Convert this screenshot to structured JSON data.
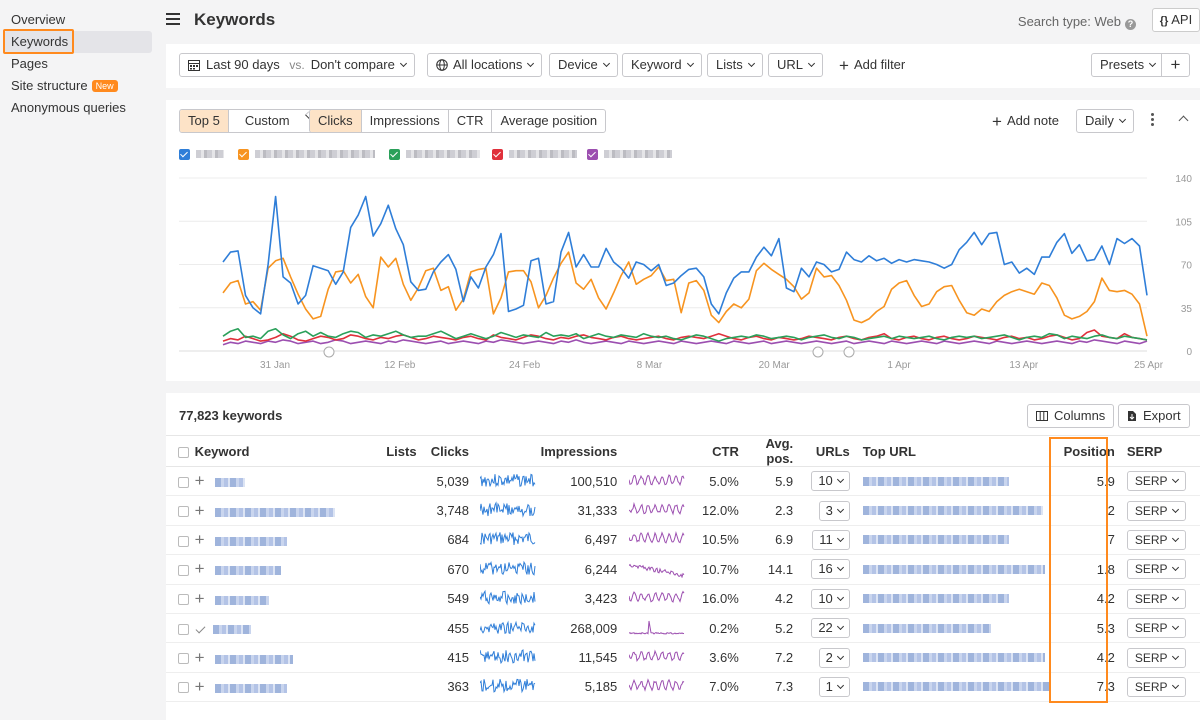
{
  "sidebar": {
    "items": [
      {
        "label": "Overview",
        "badge": ""
      },
      {
        "label": "Keywords",
        "badge": ""
      },
      {
        "label": "Pages",
        "badge": ""
      },
      {
        "label": "Site structure",
        "badge": "New"
      },
      {
        "label": "Anonymous queries",
        "badge": ""
      }
    ],
    "active_index": 1
  },
  "header": {
    "title": "Keywords",
    "search_type": "Search type: Web",
    "api_label": "API"
  },
  "filters": {
    "date": "Last 90 days",
    "vs": "vs.",
    "compare": "Don't compare",
    "locations": "All locations",
    "device": "Device",
    "keyword": "Keyword",
    "lists": "Lists",
    "url": "URL",
    "add_filter": "Add filter",
    "presets": "Presets"
  },
  "chart_controls": {
    "top": "Top 5",
    "custom": "Custom",
    "metrics": [
      "Clicks",
      "Impressions",
      "CTR",
      "Average position"
    ],
    "active_metric": "Clicks",
    "add_note": "Add note",
    "interval": "Daily"
  },
  "colors": {
    "accent": "#ff8a1e",
    "blue": "#2f7ed8",
    "orange": "#f79420",
    "green": "#2aa05a",
    "red": "#e0303b",
    "purple": "#9c4fb0",
    "highlight": "#fde3c7"
  },
  "chart_data": {
    "type": "line",
    "x_ticks": [
      "31 Jan",
      "12 Feb",
      "24 Feb",
      "8 Mar",
      "20 Mar",
      "1 Apr",
      "13 Apr",
      "25 Apr"
    ],
    "y_ticks": [
      0,
      35,
      70,
      105,
      140
    ],
    "ylim": [
      0,
      140
    ],
    "series": [
      {
        "color": "#2f7ed8",
        "values": [
          72,
          80,
          81,
          45,
          35,
          30,
          70,
          125,
          60,
          55,
          38,
          45,
          69,
          67,
          65,
          54,
          64,
          100,
          110,
          125,
          93,
          103,
          118,
          99,
          86,
          56,
          49,
          50,
          64,
          72,
          78,
          66,
          40,
          60,
          51,
          68,
          78,
          95,
          32,
          34,
          37,
          73,
          75,
          38,
          40,
          80,
          96,
          68,
          78,
          68,
          68,
          83,
          72,
          67,
          59,
          72,
          70,
          65,
          70,
          53,
          55,
          61,
          66,
          67,
          60,
          38,
          30,
          47,
          59,
          64,
          64,
          76,
          84,
          77,
          91,
          51,
          48,
          67,
          60,
          72,
          70,
          64,
          66,
          80,
          74,
          72,
          77,
          73,
          75,
          71,
          74,
          72,
          74,
          73,
          72,
          70,
          67,
          70,
          82,
          88,
          96,
          86,
          95,
          96,
          70,
          72,
          63,
          67,
          62,
          76,
          76,
          88,
          95,
          79,
          86,
          73,
          74,
          85,
          70,
          91,
          87,
          91,
          85,
          45
        ]
      },
      {
        "color": "#f79420",
        "values": [
          47,
          55,
          57,
          38,
          40,
          33,
          67,
          73,
          75,
          60,
          46,
          34,
          26,
          28,
          50,
          64,
          65,
          55,
          62,
          44,
          35,
          76,
          68,
          75,
          54,
          41,
          51,
          65,
          67,
          49,
          52,
          33,
          42,
          64,
          66,
          67,
          30,
          43,
          64,
          65,
          65,
          56,
          35,
          45,
          59,
          71,
          80,
          55,
          50,
          58,
          43,
          34,
          47,
          61,
          72,
          54,
          58,
          61,
          68,
          57,
          58,
          31,
          55,
          57,
          49,
          29,
          23,
          32,
          38,
          35,
          42,
          65,
          71,
          66,
          62,
          58,
          52,
          42,
          47,
          67,
          60,
          61,
          53,
          41,
          25,
          23,
          26,
          32,
          36,
          50,
          55,
          57,
          45,
          36,
          38,
          48,
          52,
          53,
          41,
          31,
          29,
          34,
          32,
          40,
          45,
          48,
          50,
          48,
          46,
          55,
          53,
          43,
          29,
          26,
          28,
          32,
          40,
          59,
          49,
          48,
          49,
          46,
          38,
          12
        ]
      },
      {
        "color": "#2aa05a",
        "values": [
          12,
          16,
          18,
          11,
          12,
          10,
          16,
          18,
          13,
          10,
          14,
          16,
          12,
          15,
          12,
          11,
          14,
          16,
          15,
          11,
          13,
          12,
          14,
          16,
          13,
          11,
          12,
          12,
          14,
          16,
          13,
          10,
          12,
          14,
          12,
          10,
          12,
          15,
          13,
          11,
          13,
          12,
          11,
          15,
          12,
          13,
          12,
          14,
          10,
          12,
          14,
          12,
          11,
          13,
          12,
          11,
          14,
          12,
          11,
          12,
          10,
          9,
          11,
          13,
          12,
          10,
          8,
          10,
          11,
          12,
          11,
          13,
          12,
          10,
          11,
          12,
          11,
          9,
          11,
          12,
          13,
          11,
          10,
          12,
          11,
          9,
          10,
          11,
          12,
          10,
          12,
          11,
          10,
          11,
          12,
          10,
          9,
          11,
          12,
          11,
          12,
          10,
          11,
          12,
          13,
          11,
          9,
          11,
          12,
          11,
          14,
          13,
          10,
          12,
          11,
          10,
          12,
          13,
          11,
          10,
          12,
          11,
          10,
          9
        ]
      },
      {
        "color": "#e0303b",
        "values": [
          8,
          10,
          9,
          12,
          10,
          8,
          9,
          11,
          14,
          12,
          9,
          8,
          10,
          12,
          11,
          9,
          10,
          13,
          12,
          10,
          9,
          11,
          10,
          12,
          13,
          11,
          9,
          10,
          12,
          11,
          10,
          9,
          11,
          12,
          10,
          9,
          13,
          11,
          10,
          9,
          11,
          13,
          12,
          10,
          9,
          11,
          10,
          12,
          13,
          11,
          10,
          9,
          11,
          12,
          10,
          9,
          10,
          11,
          12,
          10,
          9,
          11,
          12,
          11,
          10,
          12,
          14,
          12,
          10,
          9,
          11,
          12,
          10,
          9,
          11,
          10,
          9,
          10,
          12,
          11,
          10,
          9,
          11,
          12,
          10,
          9,
          11,
          12,
          14,
          10,
          9,
          11,
          12,
          10,
          9,
          11,
          12,
          10,
          9,
          10,
          12,
          11,
          10,
          9,
          11,
          12,
          10,
          11,
          9,
          10,
          12,
          13,
          11,
          9,
          10,
          15,
          17,
          12,
          11,
          10,
          14,
          11,
          10,
          9
        ]
      },
      {
        "color": "#9c4fb0",
        "values": [
          5,
          7,
          6,
          8,
          7,
          6,
          8,
          7,
          9,
          8,
          6,
          7,
          8,
          6,
          7,
          9,
          8,
          6,
          7,
          8,
          7,
          6,
          8,
          7,
          9,
          8,
          7,
          6,
          7,
          8,
          6,
          7,
          8,
          7,
          6,
          8,
          7,
          9,
          8,
          7,
          6,
          7,
          8,
          7,
          6,
          8,
          7,
          9,
          7,
          6,
          7,
          8,
          7,
          6,
          8,
          7,
          6,
          7,
          8,
          7,
          6,
          8,
          7,
          6,
          7,
          8,
          7,
          6,
          8,
          7,
          6,
          7,
          8,
          6,
          7,
          8,
          7,
          6,
          7,
          8,
          7,
          6,
          7,
          8,
          6,
          7,
          8,
          7,
          6,
          8,
          7,
          6,
          7,
          8,
          7,
          6,
          8,
          7,
          6,
          7,
          8,
          7,
          6,
          8,
          7,
          6,
          7,
          8,
          7,
          6,
          7,
          8,
          7,
          6,
          8,
          7,
          9,
          8,
          7,
          6,
          8,
          7,
          6,
          8
        ]
      }
    ]
  },
  "table": {
    "count": "77,823 keywords",
    "columns_btn": "Columns",
    "export_btn": "Export",
    "headers": {
      "keyword": "Keyword",
      "lists": "Lists",
      "clicks": "Clicks",
      "impressions": "Impressions",
      "ctr": "CTR",
      "avg_pos": "Avg. pos.",
      "urls": "URLs",
      "top_url": "Top URL",
      "position": "Position",
      "serp": "SERP"
    },
    "rows": [
      {
        "clicks": "5,039",
        "impressions": "100,510",
        "ctr": "5.0%",
        "avg_pos": "5.9",
        "urls": "10",
        "position": "5.9",
        "serp": "SERP",
        "tracked": false
      },
      {
        "clicks": "3,748",
        "impressions": "31,333",
        "ctr": "12.0%",
        "avg_pos": "2.3",
        "urls": "3",
        "position": "2",
        "serp": "SERP",
        "tracked": false
      },
      {
        "clicks": "684",
        "impressions": "6,497",
        "ctr": "10.5%",
        "avg_pos": "6.9",
        "urls": "11",
        "position": "7",
        "serp": "SERP",
        "tracked": false
      },
      {
        "clicks": "670",
        "impressions": "6,244",
        "ctr": "10.7%",
        "avg_pos": "14.1",
        "urls": "16",
        "position": "1.8",
        "serp": "SERP",
        "tracked": false
      },
      {
        "clicks": "549",
        "impressions": "3,423",
        "ctr": "16.0%",
        "avg_pos": "4.2",
        "urls": "10",
        "position": "4.2",
        "serp": "SERP",
        "tracked": false
      },
      {
        "clicks": "455",
        "impressions": "268,009",
        "ctr": "0.2%",
        "avg_pos": "5.2",
        "urls": "22",
        "position": "5.3",
        "serp": "SERP",
        "tracked": true
      },
      {
        "clicks": "415",
        "impressions": "11,545",
        "ctr": "3.6%",
        "avg_pos": "7.2",
        "urls": "2",
        "position": "4.2",
        "serp": "SERP",
        "tracked": false
      },
      {
        "clicks": "363",
        "impressions": "5,185",
        "ctr": "7.0%",
        "avg_pos": "7.3",
        "urls": "1",
        "position": "7.3",
        "serp": "SERP",
        "tracked": false
      }
    ]
  }
}
